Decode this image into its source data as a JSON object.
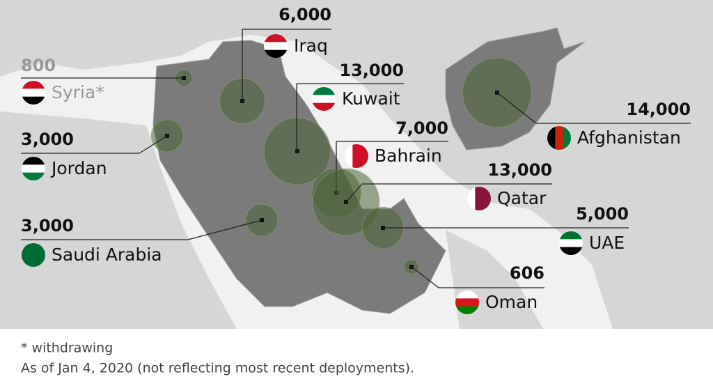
{
  "markers": [
    {
      "name": "Syria*",
      "value": 800,
      "value_label": "800"
    },
    {
      "name": "Iraq",
      "value": 6000,
      "value_label": "6,000"
    },
    {
      "name": "Kuwait",
      "value": 13000,
      "value_label": "13,000"
    },
    {
      "name": "Afghanistan",
      "value": 14000,
      "value_label": "14,000"
    },
    {
      "name": "Jordan",
      "value": 3000,
      "value_label": "3,000"
    },
    {
      "name": "Bahrain",
      "value": 7000,
      "value_label": "7,000"
    },
    {
      "name": "Qatar",
      "value": 13000,
      "value_label": "13,000"
    },
    {
      "name": "Saudi Arabia",
      "value": 3000,
      "value_label": "3,000"
    },
    {
      "name": "UAE",
      "value": 5000,
      "value_label": "5,000"
    },
    {
      "name": "Oman",
      "value": 606,
      "value_label": "606"
    }
  ],
  "footnotes": [
    "* withdrawing",
    "As of Jan 4, 2020 (not reflecting most recent deployments)."
  ]
}
